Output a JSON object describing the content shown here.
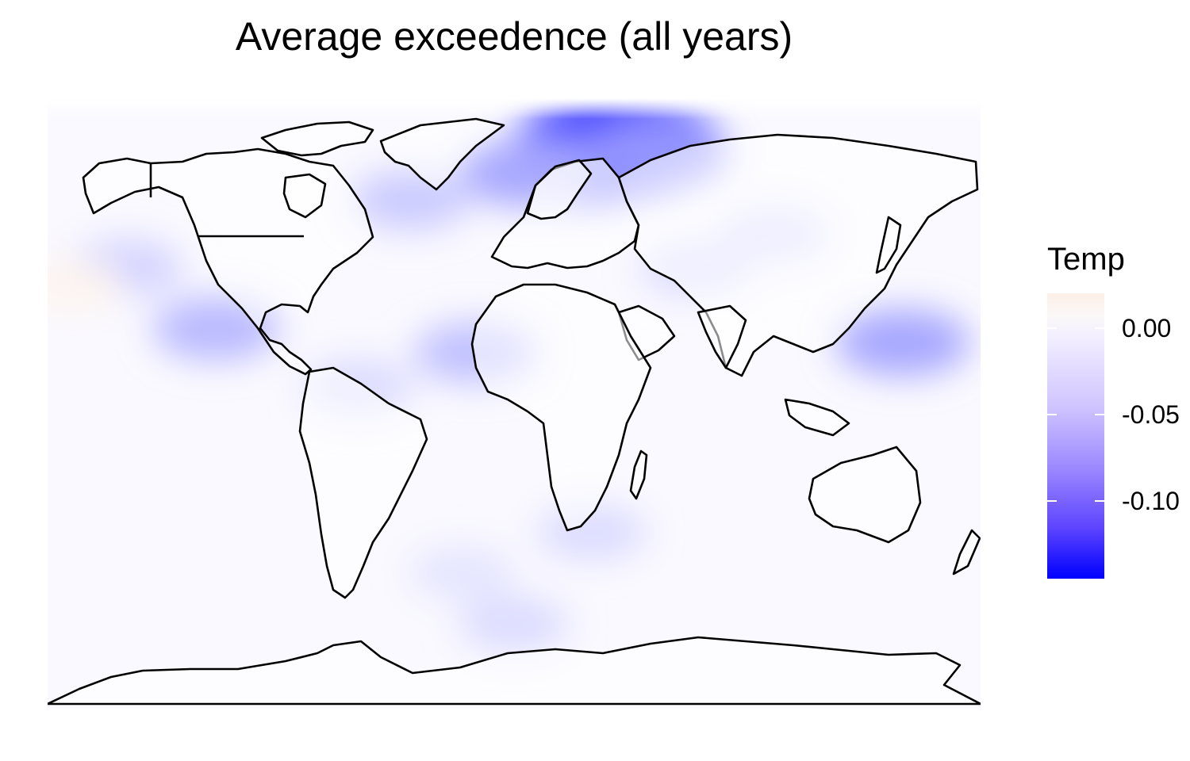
{
  "title": "Average exceedence (all years)",
  "legend": {
    "title": "Temp",
    "ticks": [
      {
        "label": "0.00",
        "value": 0.0
      },
      {
        "label": "-0.05",
        "value": -0.05
      },
      {
        "label": "-0.10",
        "value": -0.1
      }
    ],
    "range": [
      -0.145,
      0.02
    ],
    "colors": {
      "low": "#0000ff",
      "mid": "#ffffff",
      "high": "#fbe9df"
    }
  },
  "map": {
    "projection": "equirectangular",
    "lon_range": [
      -180,
      180
    ],
    "lat_range": [
      -90,
      90
    ],
    "land_fill": "#ffffff",
    "border_color": "#000000",
    "anomaly_regions": [
      {
        "lon": 40,
        "lat": 76,
        "value": -0.14
      },
      {
        "lon": 25,
        "lat": 70,
        "value": -0.08
      },
      {
        "lon": 5,
        "lat": 68,
        "value": -0.05
      },
      {
        "lon": 55,
        "lat": 74,
        "value": -0.06
      },
      {
        "lon": -40,
        "lat": 60,
        "value": -0.03
      },
      {
        "lon": -150,
        "lat": 40,
        "value": -0.025
      },
      {
        "lon": -115,
        "lat": 22,
        "value": -0.04
      },
      {
        "lon": 150,
        "lat": 18,
        "value": -0.05
      },
      {
        "lon": -15,
        "lat": 15,
        "value": -0.035
      },
      {
        "lon": -60,
        "lat": 5,
        "value": -0.02
      },
      {
        "lon": 70,
        "lat": 40,
        "value": -0.02
      },
      {
        "lon": 100,
        "lat": 50,
        "value": -0.02
      },
      {
        "lon": 30,
        "lat": -38,
        "value": -0.02
      },
      {
        "lon": -20,
        "lat": -50,
        "value": -0.015
      },
      {
        "lon": 0,
        "lat": -65,
        "value": -0.02
      },
      {
        "lon": -170,
        "lat": 35,
        "value": 0.01
      }
    ]
  }
}
